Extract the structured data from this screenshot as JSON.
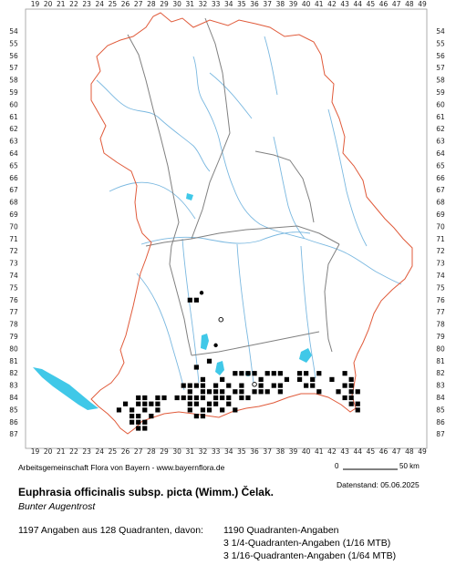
{
  "map": {
    "x_ticks": [
      "19",
      "20",
      "21",
      "22",
      "23",
      "24",
      "25",
      "26",
      "27",
      "28",
      "29",
      "30",
      "31",
      "32",
      "33",
      "34",
      "35",
      "36",
      "37",
      "38",
      "39",
      "40",
      "41",
      "42",
      "43",
      "44",
      "45",
      "46",
      "47",
      "48",
      "49"
    ],
    "y_ticks": [
      "54",
      "55",
      "56",
      "57",
      "58",
      "59",
      "60",
      "61",
      "62",
      "63",
      "64",
      "65",
      "66",
      "67",
      "68",
      "69",
      "70",
      "71",
      "72",
      "73",
      "74",
      "75",
      "76",
      "77",
      "78",
      "79",
      "80",
      "81",
      "82",
      "83",
      "84",
      "85",
      "86",
      "87"
    ],
    "colors": {
      "state_border": "#e05a3a",
      "district_border": "#808080",
      "rivers": "#7ab8e0",
      "lakes": "#40c8e8",
      "records": "#000000"
    },
    "open_circles": [
      {
        "x": 33.4,
        "y": 77.6
      },
      {
        "x": 36.0,
        "y": 82.9
      }
    ],
    "small_dots": [
      {
        "x": 31.9,
        "y": 75.4
      },
      {
        "x": 33.0,
        "y": 79.7
      }
    ],
    "squares": [
      [
        31.0,
        76.0
      ],
      [
        31.5,
        76.0
      ],
      [
        32.5,
        81.0
      ],
      [
        31.5,
        81.5
      ],
      [
        30.5,
        83.0
      ],
      [
        34.5,
        82.0
      ],
      [
        35.0,
        82.0
      ],
      [
        35.5,
        82.0
      ],
      [
        36.0,
        82.0
      ],
      [
        37.0,
        82.0
      ],
      [
        37.5,
        82.0
      ],
      [
        38.0,
        82.0
      ],
      [
        39.5,
        82.0
      ],
      [
        40.0,
        82.0
      ],
      [
        41.0,
        82.0
      ],
      [
        43.0,
        82.0
      ],
      [
        32.0,
        82.5
      ],
      [
        33.5,
        82.5
      ],
      [
        36.5,
        82.5
      ],
      [
        38.5,
        82.5
      ],
      [
        39.5,
        82.5
      ],
      [
        40.5,
        82.5
      ],
      [
        42.0,
        82.5
      ],
      [
        43.5,
        82.5
      ],
      [
        31.0,
        83.0
      ],
      [
        31.5,
        83.0
      ],
      [
        32.0,
        83.0
      ],
      [
        33.0,
        83.0
      ],
      [
        34.0,
        83.0
      ],
      [
        35.0,
        83.0
      ],
      [
        36.5,
        83.0
      ],
      [
        37.5,
        83.0
      ],
      [
        38.0,
        83.0
      ],
      [
        40.0,
        83.0
      ],
      [
        40.5,
        83.0
      ],
      [
        43.0,
        83.0
      ],
      [
        43.5,
        83.0
      ],
      [
        31.0,
        83.5
      ],
      [
        32.0,
        83.5
      ],
      [
        32.5,
        83.5
      ],
      [
        33.0,
        83.5
      ],
      [
        33.5,
        83.5
      ],
      [
        34.5,
        83.5
      ],
      [
        35.0,
        83.5
      ],
      [
        36.0,
        83.5
      ],
      [
        36.5,
        83.5
      ],
      [
        37.0,
        83.5
      ],
      [
        38.0,
        83.5
      ],
      [
        41.0,
        83.5
      ],
      [
        42.5,
        83.5
      ],
      [
        43.5,
        83.5
      ],
      [
        44.0,
        83.5
      ],
      [
        27.0,
        84.0
      ],
      [
        27.5,
        84.0
      ],
      [
        28.5,
        84.0
      ],
      [
        29.0,
        84.0
      ],
      [
        30.0,
        84.0
      ],
      [
        30.5,
        84.0
      ],
      [
        31.0,
        84.0
      ],
      [
        31.5,
        84.0
      ],
      [
        32.0,
        84.0
      ],
      [
        33.0,
        84.0
      ],
      [
        33.5,
        84.0
      ],
      [
        34.0,
        84.0
      ],
      [
        35.0,
        84.0
      ],
      [
        35.5,
        84.0
      ],
      [
        43.0,
        84.0
      ],
      [
        43.5,
        84.0
      ],
      [
        26.0,
        84.5
      ],
      [
        27.0,
        84.5
      ],
      [
        27.5,
        84.5
      ],
      [
        28.0,
        84.5
      ],
      [
        28.5,
        84.5
      ],
      [
        31.0,
        84.5
      ],
      [
        31.5,
        84.5
      ],
      [
        32.5,
        84.5
      ],
      [
        33.0,
        84.5
      ],
      [
        34.0,
        84.5
      ],
      [
        43.5,
        84.5
      ],
      [
        44.0,
        84.5
      ],
      [
        25.5,
        85.0
      ],
      [
        26.5,
        85.0
      ],
      [
        27.5,
        85.0
      ],
      [
        28.5,
        85.0
      ],
      [
        31.0,
        85.0
      ],
      [
        32.0,
        85.0
      ],
      [
        32.5,
        85.0
      ],
      [
        33.5,
        85.0
      ],
      [
        34.5,
        85.0
      ],
      [
        44.0,
        85.0
      ],
      [
        26.5,
        85.5
      ],
      [
        27.0,
        85.5
      ],
      [
        28.0,
        85.5
      ],
      [
        31.5,
        85.5
      ],
      [
        32.0,
        85.5
      ],
      [
        26.5,
        86.0
      ],
      [
        27.0,
        86.0
      ],
      [
        27.5,
        86.0
      ],
      [
        27.0,
        86.5
      ],
      [
        27.5,
        86.5
      ]
    ]
  },
  "credit": "Arbeitsgemeinschaft Flora von Bayern - www.bayernflora.de",
  "scale": {
    "start": "0",
    "end": "50 km"
  },
  "datestamp": "Datenstand: 05.06.2025",
  "species": {
    "name": "Euphrasia officinalis subsp. picta (Wimm.) Čelak.",
    "common_name": "Bunter Augentrost"
  },
  "summary": {
    "total": "1197 Angaben aus 128 Quadranten, davon:",
    "lines": [
      "1190 Quadranten-Angaben",
      "3 1/4-Quadranten-Angaben (1/16 MTB)",
      "3 1/16-Quadranten-Angaben (1/64 MTB)"
    ]
  }
}
